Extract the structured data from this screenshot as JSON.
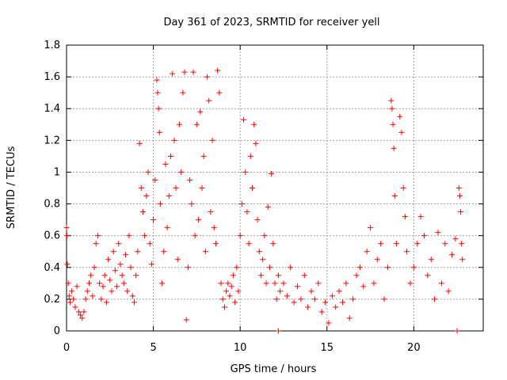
{
  "chart_data": {
    "type": "scatter",
    "title": "Day 361 of 2023, SRMTID for receiver yell",
    "xlabel": "GPS time / hours",
    "ylabel": "SRMTID / TECUs",
    "xlim": [
      0,
      24
    ],
    "ylim": [
      0,
      1.8
    ],
    "xticks": [
      0,
      5,
      10,
      15,
      20
    ],
    "xtick_labels": [
      "0",
      "5",
      "10",
      "15",
      "20"
    ],
    "yticks": [
      0,
      0.2,
      0.4,
      0.6,
      0.8,
      1.0,
      1.2,
      1.4,
      1.6,
      1.8
    ],
    "ytick_labels": [
      "0",
      "0.2",
      "0.4",
      "0.6",
      "0.8",
      "1",
      "1.2",
      "1.4",
      "1.6",
      "1.8"
    ],
    "grid": true,
    "marker": "+",
    "color": "#ff0000",
    "series": [
      {
        "name": "SRMTID",
        "points": [
          [
            0.0,
            0.65
          ],
          [
            0.02,
            0.6
          ],
          [
            0.05,
            0.42
          ],
          [
            0.1,
            0.3
          ],
          [
            0.15,
            0.22
          ],
          [
            0.2,
            0.18
          ],
          [
            0.3,
            0.25
          ],
          [
            0.4,
            0.2
          ],
          [
            0.5,
            0.15
          ],
          [
            0.6,
            0.28
          ],
          [
            0.7,
            0.12
          ],
          [
            0.8,
            0.1
          ],
          [
            0.9,
            0.08
          ],
          [
            1.0,
            0.12
          ],
          [
            1.1,
            0.2
          ],
          [
            1.2,
            0.25
          ],
          [
            1.3,
            0.3
          ],
          [
            1.4,
            0.35
          ],
          [
            1.5,
            0.22
          ],
          [
            1.6,
            0.4
          ],
          [
            1.7,
            0.55
          ],
          [
            1.8,
            0.6
          ],
          [
            1.9,
            0.3
          ],
          [
            2.0,
            0.2
          ],
          [
            2.1,
            0.28
          ],
          [
            2.2,
            0.35
          ],
          [
            2.3,
            0.18
          ],
          [
            2.4,
            0.45
          ],
          [
            2.5,
            0.32
          ],
          [
            2.6,
            0.25
          ],
          [
            2.7,
            0.5
          ],
          [
            2.8,
            0.38
          ],
          [
            2.9,
            0.28
          ],
          [
            3.0,
            0.55
          ],
          [
            3.1,
            0.42
          ],
          [
            3.2,
            0.35
          ],
          [
            3.3,
            0.3
          ],
          [
            3.4,
            0.48
          ],
          [
            3.5,
            0.25
          ],
          [
            3.6,
            0.6
          ],
          [
            3.7,
            0.4
          ],
          [
            3.8,
            0.22
          ],
          [
            3.9,
            0.18
          ],
          [
            4.0,
            0.35
          ],
          [
            4.1,
            0.5
          ],
          [
            4.2,
            1.18
          ],
          [
            4.3,
            0.9
          ],
          [
            4.4,
            0.75
          ],
          [
            4.5,
            0.6
          ],
          [
            4.6,
            0.85
          ],
          [
            4.7,
            1.0
          ],
          [
            4.8,
            0.55
          ],
          [
            4.9,
            0.42
          ],
          [
            5.0,
            0.7
          ],
          [
            5.1,
            0.95
          ],
          [
            5.2,
            1.58
          ],
          [
            5.25,
            1.5
          ],
          [
            5.3,
            1.4
          ],
          [
            5.35,
            1.25
          ],
          [
            5.4,
            0.8
          ],
          [
            5.5,
            0.3
          ],
          [
            5.6,
            0.5
          ],
          [
            5.7,
            1.05
          ],
          [
            5.8,
            0.65
          ],
          [
            5.9,
            0.85
          ],
          [
            6.0,
            1.1
          ],
          [
            6.1,
            1.62
          ],
          [
            6.2,
            1.2
          ],
          [
            6.3,
            0.9
          ],
          [
            6.4,
            0.45
          ],
          [
            6.5,
            1.3
          ],
          [
            6.6,
            1.0
          ],
          [
            6.7,
            1.5
          ],
          [
            6.8,
            1.63
          ],
          [
            6.9,
            0.07
          ],
          [
            7.0,
            0.4
          ],
          [
            7.1,
            0.95
          ],
          [
            7.2,
            0.8
          ],
          [
            7.3,
            1.63
          ],
          [
            7.4,
            0.6
          ],
          [
            7.5,
            1.3
          ],
          [
            7.6,
            0.7
          ],
          [
            7.7,
            1.38
          ],
          [
            7.8,
            0.9
          ],
          [
            7.9,
            1.1
          ],
          [
            8.0,
            0.5
          ],
          [
            8.1,
            1.6
          ],
          [
            8.2,
            1.45
          ],
          [
            8.3,
            0.75
          ],
          [
            8.4,
            1.2
          ],
          [
            8.5,
            0.65
          ],
          [
            8.6,
            0.55
          ],
          [
            8.7,
            1.64
          ],
          [
            8.8,
            1.5
          ],
          [
            8.9,
            0.3
          ],
          [
            9.0,
            0.2
          ],
          [
            9.1,
            0.15
          ],
          [
            9.2,
            0.25
          ],
          [
            9.3,
            0.3
          ],
          [
            9.4,
            0.22
          ],
          [
            9.5,
            0.28
          ],
          [
            9.6,
            0.35
          ],
          [
            9.7,
            0.18
          ],
          [
            9.8,
            0.4
          ],
          [
            9.9,
            0.25
          ],
          [
            10.0,
            0.6
          ],
          [
            10.1,
            0.8
          ],
          [
            10.2,
            1.33
          ],
          [
            10.3,
            1.0
          ],
          [
            10.4,
            0.75
          ],
          [
            10.5,
            0.55
          ],
          [
            10.6,
            1.1
          ],
          [
            10.7,
            0.9
          ],
          [
            10.8,
            1.3
          ],
          [
            10.9,
            1.18
          ],
          [
            11.0,
            0.7
          ],
          [
            11.1,
            0.5
          ],
          [
            11.2,
            0.35
          ],
          [
            11.3,
            0.45
          ],
          [
            11.4,
            0.6
          ],
          [
            11.5,
            0.3
          ],
          [
            11.6,
            0.78
          ],
          [
            11.7,
            0.4
          ],
          [
            11.8,
            0.99
          ],
          [
            11.9,
            0.55
          ],
          [
            12.0,
            0.3
          ],
          [
            12.1,
            0.2
          ],
          [
            12.2,
            0.35
          ],
          [
            12.3,
            0.25
          ],
          [
            12.5,
            0.3
          ],
          [
            12.7,
            0.22
          ],
          [
            12.9,
            0.4
          ],
          [
            13.1,
            0.18
          ],
          [
            13.3,
            0.28
          ],
          [
            13.5,
            0.2
          ],
          [
            13.7,
            0.35
          ],
          [
            13.9,
            0.15
          ],
          [
            14.1,
            0.25
          ],
          [
            14.3,
            0.2
          ],
          [
            14.5,
            0.3
          ],
          [
            14.7,
            0.12
          ],
          [
            14.9,
            0.18
          ],
          [
            15.1,
            0.05
          ],
          [
            15.3,
            0.22
          ],
          [
            15.5,
            0.15
          ],
          [
            15.7,
            0.25
          ],
          [
            15.9,
            0.18
          ],
          [
            16.1,
            0.3
          ],
          [
            16.3,
            0.08
          ],
          [
            16.5,
            0.2
          ],
          [
            16.7,
            0.35
          ],
          [
            16.9,
            0.4
          ],
          [
            17.1,
            0.28
          ],
          [
            17.3,
            0.5
          ],
          [
            17.5,
            0.65
          ],
          [
            17.7,
            0.3
          ],
          [
            17.9,
            0.45
          ],
          [
            18.1,
            0.55
          ],
          [
            18.3,
            0.2
          ],
          [
            18.5,
            0.4
          ],
          [
            18.7,
            1.45
          ],
          [
            18.75,
            1.4
          ],
          [
            18.8,
            1.3
          ],
          [
            18.85,
            1.15
          ],
          [
            18.9,
            0.85
          ],
          [
            19.0,
            0.55
          ],
          [
            19.2,
            1.35
          ],
          [
            19.3,
            1.25
          ],
          [
            19.4,
            0.9
          ],
          [
            19.5,
            0.72
          ],
          [
            19.6,
            0.5
          ],
          [
            19.8,
            0.3
          ],
          [
            20.0,
            0.4
          ],
          [
            20.2,
            0.55
          ],
          [
            20.4,
            0.72
          ],
          [
            20.6,
            0.6
          ],
          [
            20.8,
            0.35
          ],
          [
            21.0,
            0.45
          ],
          [
            21.2,
            0.2
          ],
          [
            21.4,
            0.62
          ],
          [
            21.6,
            0.3
          ],
          [
            21.8,
            0.55
          ],
          [
            22.0,
            0.25
          ],
          [
            22.2,
            0.48
          ],
          [
            22.4,
            0.58
          ],
          [
            22.6,
            0.9
          ],
          [
            22.65,
            0.85
          ],
          [
            22.7,
            0.75
          ],
          [
            22.75,
            0.55
          ],
          [
            22.8,
            0.45
          ],
          [
            12.2,
            0.0
          ],
          [
            22.5,
            0.0
          ]
        ]
      }
    ]
  }
}
